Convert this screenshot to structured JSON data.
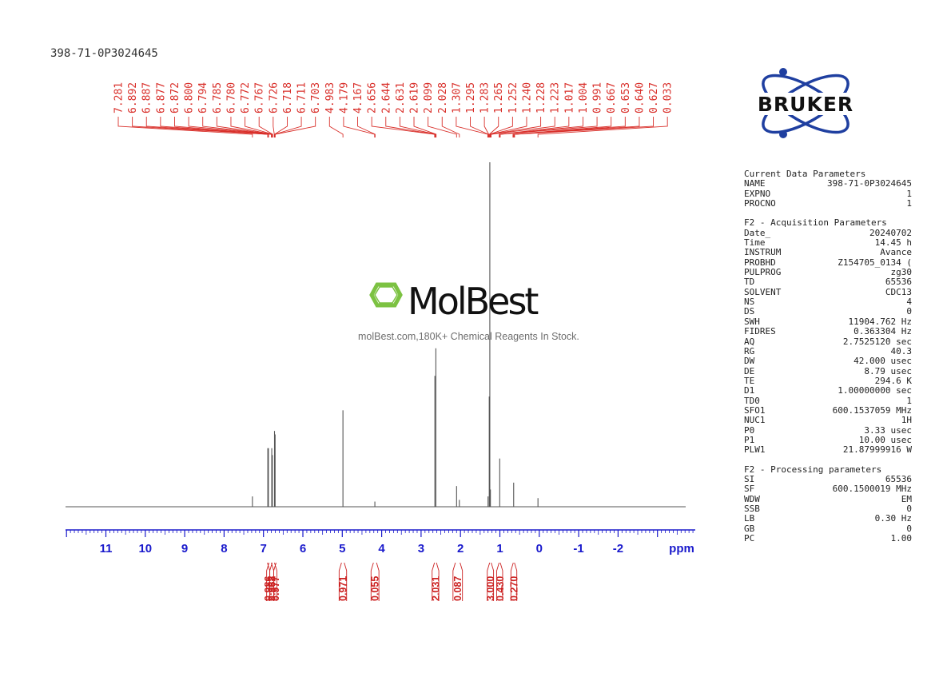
{
  "sample_id": "398-71-0P3024645",
  "logos": {
    "bruker": "BRUKER",
    "molbest": "MolBest",
    "molbest_caption": "molBest.com,180K+ Chemical Reagents In Stock."
  },
  "colors": {
    "peak_labels": "#d9302b",
    "axis": "#1a1acc",
    "integrals": "#cc2222",
    "spectrum": "#555555",
    "bruker_orbit": "#1f3fa0",
    "molbest_green": "#7cc242"
  },
  "chart_data": {
    "type": "line",
    "title": "",
    "xlabel": "ppm",
    "xlim": [
      12.0,
      -4.0
    ],
    "reversed_x": true,
    "x_ticks": [
      "11",
      "10",
      "9",
      "8",
      "7",
      "6",
      "5",
      "4",
      "3",
      "2",
      "1",
      "0",
      "-1",
      "-2"
    ],
    "x_tick_values": [
      11,
      10,
      9,
      8,
      7,
      6,
      5,
      4,
      3,
      2,
      1,
      0,
      -1,
      -2
    ],
    "peak_labels": [
      "7.281",
      "6.892",
      "6.887",
      "6.877",
      "6.872",
      "6.800",
      "6.794",
      "6.785",
      "6.780",
      "6.772",
      "6.767",
      "6.726",
      "6.718",
      "6.711",
      "6.703",
      "4.983",
      "4.179",
      "4.167",
      "2.656",
      "2.644",
      "2.631",
      "2.619",
      "2.099",
      "2.028",
      "1.307",
      "1.295",
      "1.283",
      "1.265",
      "1.252",
      "1.240",
      "1.228",
      "1.223",
      "1.017",
      "1.004",
      "0.991",
      "0.667",
      "0.653",
      "0.640",
      "0.627",
      "0.033"
    ],
    "peaks": [
      {
        "ppm": 7.281,
        "height": 0.03
      },
      {
        "ppm": 6.89,
        "height": 0.17
      },
      {
        "ppm": 6.875,
        "height": 0.17
      },
      {
        "ppm": 6.79,
        "height": 0.17
      },
      {
        "ppm": 6.775,
        "height": 0.15
      },
      {
        "ppm": 6.72,
        "height": 0.22
      },
      {
        "ppm": 6.705,
        "height": 0.21
      },
      {
        "ppm": 4.983,
        "height": 0.28
      },
      {
        "ppm": 4.173,
        "height": 0.015
      },
      {
        "ppm": 2.65,
        "height": 0.38
      },
      {
        "ppm": 2.625,
        "height": 0.46
      },
      {
        "ppm": 2.099,
        "height": 0.06
      },
      {
        "ppm": 2.028,
        "height": 0.02
      },
      {
        "ppm": 1.3,
        "height": 0.03
      },
      {
        "ppm": 1.27,
        "height": 0.32
      },
      {
        "ppm": 1.255,
        "height": 1.0
      },
      {
        "ppm": 1.24,
        "height": 0.05
      },
      {
        "ppm": 1.004,
        "height": 0.14
      },
      {
        "ppm": 0.65,
        "height": 0.07
      },
      {
        "ppm": 0.033,
        "height": 0.025
      }
    ],
    "integrals": [
      {
        "label": "0.986",
        "from": 6.92,
        "to": 6.84
      },
      {
        "label": "0.962",
        "from": 6.84,
        "to": 6.74
      },
      {
        "label": "0.977",
        "from": 6.74,
        "to": 6.66
      },
      {
        "label": "0.971",
        "from": 5.08,
        "to": 4.89
      },
      {
        "label": "0.055",
        "from": 4.27,
        "to": 4.07
      },
      {
        "label": "2.031",
        "from": 2.72,
        "to": 2.55
      },
      {
        "label": "0.087",
        "from": 2.19,
        "to": 1.95
      },
      {
        "label": "3.000",
        "from": 1.32,
        "to": 1.16
      },
      {
        "label": "0.430",
        "from": 1.08,
        "to": 0.93
      },
      {
        "label": "0.270",
        "from": 0.72,
        "to": 0.57
      }
    ]
  },
  "parameters": [
    {
      "title": "Current Data Parameters",
      "rows": [
        {
          "k": "NAME",
          "v": "398-71-0P3024645"
        },
        {
          "k": "EXPNO",
          "v": "1"
        },
        {
          "k": "PROCNO",
          "v": "1"
        }
      ]
    },
    {
      "title": "F2 - Acquisition Parameters",
      "rows": [
        {
          "k": "Date_",
          "v": "20240702"
        },
        {
          "k": "Time",
          "v": "14.45 h"
        },
        {
          "k": "INSTRUM",
          "v": "Avance"
        },
        {
          "k": "PROBHD",
          "v": "Z154705_0134 ("
        },
        {
          "k": "PULPROG",
          "v": "zg30"
        },
        {
          "k": "TD",
          "v": "65536"
        },
        {
          "k": "SOLVENT",
          "v": "CDC13"
        },
        {
          "k": "NS",
          "v": "4"
        },
        {
          "k": "DS",
          "v": "0"
        },
        {
          "k": "SWH",
          "v": "11904.762 Hz"
        },
        {
          "k": "FIDRES",
          "v": "0.363304 Hz"
        },
        {
          "k": "AQ",
          "v": "2.7525120 sec"
        },
        {
          "k": "RG",
          "v": "40.3"
        },
        {
          "k": "DW",
          "v": "42.000 usec"
        },
        {
          "k": "DE",
          "v": "8.79 usec"
        },
        {
          "k": "TE",
          "v": "294.6 K"
        },
        {
          "k": "D1",
          "v": "1.00000000 sec"
        },
        {
          "k": "TD0",
          "v": "1"
        },
        {
          "k": "SFO1",
          "v": "600.1537059 MHz"
        },
        {
          "k": "NUC1",
          "v": "1H"
        },
        {
          "k": "P0",
          "v": "3.33 usec"
        },
        {
          "k": "P1",
          "v": "10.00 usec"
        },
        {
          "k": "PLW1",
          "v": "21.87999916 W"
        }
      ]
    },
    {
      "title": "F2 - Processing parameters",
      "rows": [
        {
          "k": "SI",
          "v": "65536"
        },
        {
          "k": "SF",
          "v": "600.1500019 MHz"
        },
        {
          "k": "WDW",
          "v": "EM"
        },
        {
          "k": "SSB",
          "v": "0"
        },
        {
          "k": "LB",
          "v": "0.30 Hz"
        },
        {
          "k": "GB",
          "v": "0"
        },
        {
          "k": "PC",
          "v": "1.00"
        }
      ]
    }
  ]
}
